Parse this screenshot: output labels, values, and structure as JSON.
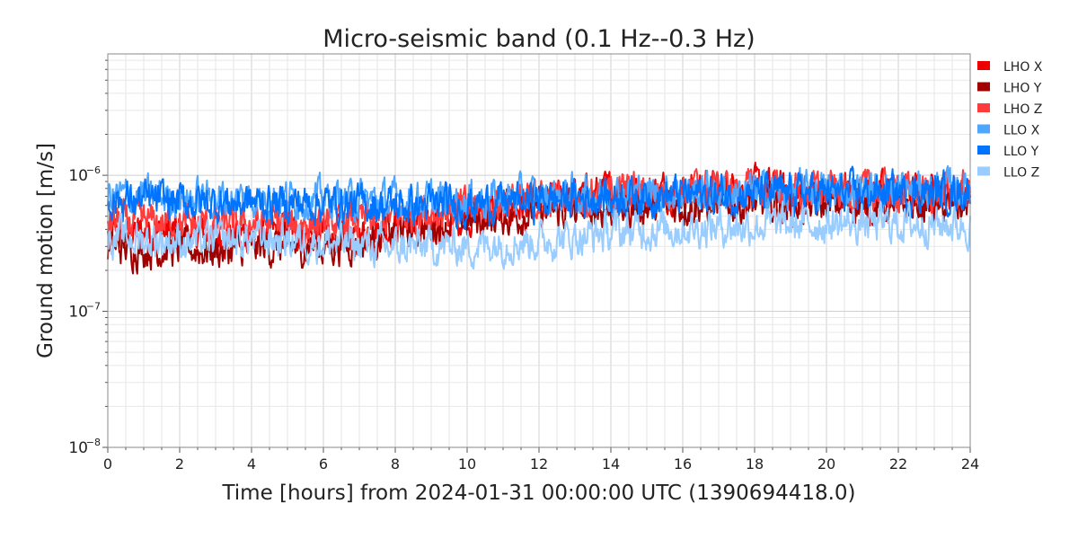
{
  "chart_data": {
    "type": "line",
    "title": "Micro-seismic band (0.1 Hz--0.3 Hz)",
    "xlabel": "Time [hours] from 2024-01-31 00:00:00 UTC (1390694418.0)",
    "ylabel": "Ground motion [m/s]",
    "xlim": [
      0,
      24
    ],
    "ylim": [
      1e-08,
      7.8e-06
    ],
    "yscale": "log",
    "grid": true,
    "legend_placement": "outside-right-top",
    "x_ticks": [
      "0",
      "2",
      "4",
      "6",
      "8",
      "10",
      "12",
      "14",
      "16",
      "18",
      "20",
      "22",
      "24"
    ],
    "y_ticks": [
      {
        "base": "10",
        "exp": "−8",
        "value": 1e-08
      },
      {
        "base": "10",
        "exp": "−7",
        "value": 1e-07
      },
      {
        "base": "10",
        "exp": "−6",
        "value": 1e-06
      }
    ],
    "x_hours": [
      0,
      1,
      2,
      3,
      4,
      5,
      6,
      7,
      8,
      9,
      10,
      11,
      12,
      13,
      14,
      15,
      16,
      17,
      18,
      19,
      20,
      21,
      22,
      23,
      24
    ],
    "series": [
      {
        "name": "LHO X",
        "color": "#ee0000",
        "values": [
          3.6e-07,
          3.8e-07,
          3.8e-07,
          3.6e-07,
          3.7e-07,
          3.8e-07,
          3.7e-07,
          3.8e-07,
          4.2e-07,
          4.6e-07,
          5e-07,
          5.6e-07,
          6.2e-07,
          7e-07,
          7.5e-07,
          7.6e-07,
          7.8e-07,
          7.8e-07,
          8e-07,
          7.8e-07,
          7.6e-07,
          7.5e-07,
          7.6e-07,
          7.5e-07,
          7.4e-07
        ]
      },
      {
        "name": "LHO Y",
        "color": "#a00000",
        "values": [
          3e-07,
          2.9e-07,
          2.9e-07,
          2.8e-07,
          2.9e-07,
          3e-07,
          3e-07,
          3.2e-07,
          3.8e-07,
          4.3e-07,
          4.6e-07,
          5e-07,
          5.3e-07,
          5.5e-07,
          5.7e-07,
          5.8e-07,
          6e-07,
          6e-07,
          6.1e-07,
          6e-07,
          6e-07,
          6.1e-07,
          6.1e-07,
          6e-07,
          6e-07
        ]
      },
      {
        "name": "LHO Z",
        "color": "#ff3b3b",
        "values": [
          4.6e-07,
          4.5e-07,
          4.4e-07,
          4.3e-07,
          4.4e-07,
          4.5e-07,
          4.5e-07,
          4.6e-07,
          4.9e-07,
          5.3e-07,
          5.8e-07,
          6.2e-07,
          6.6e-07,
          7.1e-07,
          7.5e-07,
          7.7e-07,
          7.8e-07,
          7.9e-07,
          7.9e-07,
          7.8e-07,
          7.7e-07,
          7.6e-07,
          7.6e-07,
          7.6e-07,
          7.5e-07
        ]
      },
      {
        "name": "LLO X",
        "color": "#4da6ff",
        "values": [
          7e-07,
          7e-07,
          6.8e-07,
          6.8e-07,
          6.8e-07,
          6.8e-07,
          6.7e-07,
          6.6e-07,
          6.5e-07,
          6.5e-07,
          6.6e-07,
          6.8e-07,
          7e-07,
          7.2e-07,
          7.3e-07,
          7.4e-07,
          7.5e-07,
          7.5e-07,
          7.6e-07,
          7.7e-07,
          7.8e-07,
          7.8e-07,
          7.9e-07,
          7.9e-07,
          8e-07
        ]
      },
      {
        "name": "LLO Y",
        "color": "#0073ff",
        "values": [
          6.6e-07,
          6.5e-07,
          6.4e-07,
          6.3e-07,
          6.3e-07,
          6.3e-07,
          6.2e-07,
          6.1e-07,
          6e-07,
          6e-07,
          6.1e-07,
          6.3e-07,
          6.5e-07,
          6.8e-07,
          7e-07,
          7.1e-07,
          7.2e-07,
          7.2e-07,
          7.3e-07,
          7.3e-07,
          7.4e-07,
          7.4e-07,
          7.5e-07,
          7.5e-07,
          7.6e-07
        ]
      },
      {
        "name": "LLO Z",
        "color": "#99ccff",
        "values": [
          3.5e-07,
          3.4e-07,
          3.3e-07,
          3.3e-07,
          3.4e-07,
          3.4e-07,
          3.2e-07,
          3.1e-07,
          2.9e-07,
          3e-07,
          3e-07,
          3.2e-07,
          3.3e-07,
          3.5e-07,
          3.8e-07,
          4e-07,
          4.1e-07,
          4.2e-07,
          4.3e-07,
          4.3e-07,
          4.4e-07,
          4.4e-07,
          4.4e-07,
          4.4e-07,
          4.3e-07
        ]
      }
    ]
  }
}
